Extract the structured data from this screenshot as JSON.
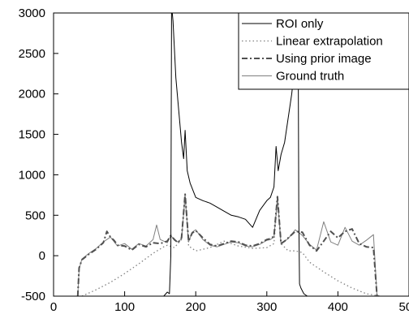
{
  "chart_data": {
    "type": "line",
    "title": "",
    "xlabel": "",
    "ylabel": "",
    "xlim": [
      0,
      500
    ],
    "ylim": [
      -500,
      3000
    ],
    "x_ticks": [
      0,
      100,
      200,
      300,
      400,
      500
    ],
    "x_tick_labels": [
      "0",
      "100",
      "200",
      "300",
      "400",
      "500"
    ],
    "y_ticks": [
      -500,
      0,
      500,
      1000,
      1500,
      2000,
      2500,
      3000
    ],
    "y_tick_labels": [
      "-500",
      "0",
      "500",
      "1000",
      "1500",
      "2000",
      "2500",
      "3000"
    ],
    "grid": false,
    "legend_position": "top-right",
    "series": [
      {
        "name": "ROI only",
        "style": "solid",
        "color": "#000000",
        "x": [
          155,
          160,
          163,
          165,
          166,
          167,
          168,
          172,
          176,
          180,
          183,
          185,
          188,
          192,
          200,
          210,
          220,
          230,
          240,
          250,
          260,
          270,
          275,
          280,
          290,
          300,
          305,
          310,
          313,
          316,
          320,
          325,
          330,
          335,
          340,
          342,
          344,
          345,
          346,
          348,
          352,
          357,
          362
        ],
        "y": [
          -500,
          -450,
          -470,
          0,
          3000,
          3000,
          2900,
          2200,
          1800,
          1400,
          1200,
          1550,
          1050,
          900,
          720,
          680,
          650,
          600,
          550,
          500,
          480,
          450,
          400,
          350,
          560,
          680,
          720,
          850,
          1350,
          1050,
          1250,
          1400,
          1700,
          2000,
          2400,
          3000,
          3000,
          500,
          -350,
          -400,
          -470,
          -500,
          -500
        ]
      },
      {
        "name": "Linear extrapolation",
        "style": "dotted",
        "color": "#808080",
        "x": [
          40,
          60,
          80,
          100,
          120,
          140,
          155,
          160,
          170,
          180,
          185,
          190,
          200,
          220,
          240,
          260,
          280,
          300,
          310,
          315,
          320,
          330,
          340,
          350,
          360,
          380,
          400,
          420,
          440,
          460
        ],
        "y": [
          -500,
          -420,
          -330,
          -220,
          -100,
          30,
          110,
          130,
          100,
          200,
          750,
          120,
          60,
          100,
          180,
          120,
          90,
          100,
          150,
          700,
          150,
          60,
          60,
          40,
          -80,
          -200,
          -310,
          -400,
          -470,
          -500
        ]
      },
      {
        "name": "Using prior image",
        "style": "dashdot",
        "color": "#505050",
        "x": [
          34,
          36,
          40,
          50,
          60,
          70,
          75,
          80,
          85,
          90,
          100,
          110,
          120,
          130,
          140,
          150,
          160,
          165,
          170,
          175,
          180,
          185,
          190,
          195,
          200,
          210,
          220,
          230,
          240,
          250,
          260,
          270,
          280,
          290,
          300,
          305,
          310,
          315,
          320,
          325,
          330,
          340,
          350,
          360,
          370,
          380,
          390,
          400,
          410,
          420,
          430,
          440,
          450,
          455
        ],
        "y": [
          -500,
          -150,
          -50,
          20,
          80,
          160,
          300,
          230,
          190,
          130,
          120,
          70,
          140,
          110,
          160,
          150,
          180,
          250,
          200,
          160,
          220,
          760,
          180,
          280,
          310,
          220,
          140,
          120,
          150,
          180,
          170,
          130,
          120,
          150,
          200,
          210,
          240,
          730,
          150,
          180,
          220,
          300,
          290,
          130,
          60,
          180,
          300,
          220,
          300,
          330,
          150,
          110,
          100,
          -500
        ]
      },
      {
        "name": "Ground truth",
        "style": "solid",
        "color": "#808080",
        "x": [
          34,
          36,
          40,
          50,
          60,
          70,
          80,
          90,
          100,
          110,
          120,
          130,
          140,
          145,
          150,
          160,
          165,
          170,
          175,
          180,
          185,
          190,
          195,
          200,
          210,
          220,
          230,
          240,
          250,
          260,
          270,
          280,
          290,
          300,
          305,
          310,
          315,
          320,
          325,
          330,
          340,
          350,
          360,
          370,
          380,
          390,
          400,
          410,
          420,
          430,
          440,
          450,
          455
        ],
        "y": [
          -500,
          -160,
          -40,
          30,
          90,
          170,
          230,
          120,
          150,
          80,
          150,
          120,
          200,
          380,
          200,
          160,
          250,
          190,
          170,
          210,
          740,
          170,
          290,
          320,
          200,
          130,
          110,
          140,
          170,
          160,
          120,
          110,
          140,
          190,
          200,
          230,
          720,
          140,
          180,
          210,
          320,
          250,
          140,
          70,
          420,
          170,
          130,
          350,
          180,
          130,
          190,
          260,
          -500
        ]
      }
    ]
  }
}
